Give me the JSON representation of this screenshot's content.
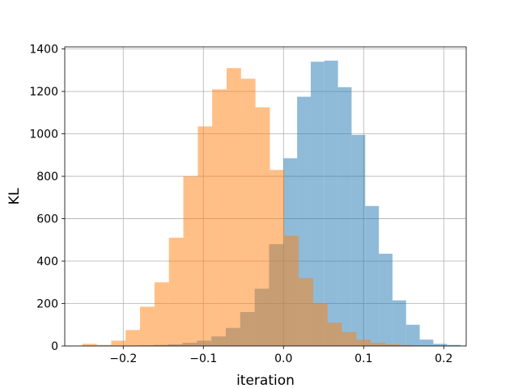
{
  "chart_data": {
    "type": "bar",
    "title": "",
    "xlabel": "iteration",
    "ylabel": "KL",
    "xlim": [
      -0.273,
      0.228
    ],
    "ylim": [
      0,
      1410
    ],
    "xticks": [
      -0.2,
      -0.1,
      0.0,
      0.1,
      0.2
    ],
    "xtick_labels": [
      "−0.2",
      "−0.1",
      "0.0",
      "0.1",
      "0.2"
    ],
    "yticks": [
      0,
      200,
      400,
      600,
      800,
      1000,
      1200,
      1400
    ],
    "ytick_labels": [
      "0",
      "200",
      "400",
      "600",
      "800",
      "1000",
      "1200",
      "1400"
    ],
    "grid": true,
    "legend": null,
    "series": [
      {
        "color": "#1f77b4",
        "alpha": 0.5,
        "bins": [
          {
            "x0": -0.198,
            "x1": -0.18,
            "value": 2
          },
          {
            "x0": -0.18,
            "x1": -0.162,
            "value": 3
          },
          {
            "x0": -0.162,
            "x1": -0.144,
            "value": 5
          },
          {
            "x0": -0.144,
            "x1": -0.126,
            "value": 8
          },
          {
            "x0": -0.126,
            "x1": -0.108,
            "value": 15
          },
          {
            "x0": -0.108,
            "x1": -0.09,
            "value": 25
          },
          {
            "x0": -0.09,
            "x1": -0.072,
            "value": 45
          },
          {
            "x0": -0.072,
            "x1": -0.054,
            "value": 85
          },
          {
            "x0": -0.054,
            "x1": -0.036,
            "value": 160
          },
          {
            "x0": -0.036,
            "x1": -0.018,
            "value": 270
          },
          {
            "x0": -0.018,
            "x1": 0.0,
            "value": 480
          },
          {
            "x0": 0.0,
            "x1": 0.017,
            "value": 885
          },
          {
            "x0": 0.017,
            "x1": 0.034,
            "value": 1175
          },
          {
            "x0": 0.034,
            "x1": 0.051,
            "value": 1340
          },
          {
            "x0": 0.051,
            "x1": 0.068,
            "value": 1345
          },
          {
            "x0": 0.068,
            "x1": 0.085,
            "value": 1220
          },
          {
            "x0": 0.085,
            "x1": 0.102,
            "value": 995
          },
          {
            "x0": 0.102,
            "x1": 0.119,
            "value": 660
          },
          {
            "x0": 0.119,
            "x1": 0.136,
            "value": 435
          },
          {
            "x0": 0.136,
            "x1": 0.153,
            "value": 215
          },
          {
            "x0": 0.153,
            "x1": 0.17,
            "value": 100
          },
          {
            "x0": 0.17,
            "x1": 0.187,
            "value": 30
          },
          {
            "x0": 0.187,
            "x1": 0.204,
            "value": 10
          },
          {
            "x0": 0.204,
            "x1": 0.221,
            "value": 5
          }
        ]
      },
      {
        "color": "#ff7f0e",
        "alpha": 0.5,
        "bins": [
          {
            "x0": -0.251,
            "x1": -0.233,
            "value": 10
          },
          {
            "x0": -0.233,
            "x1": -0.215,
            "value": 5
          },
          {
            "x0": -0.215,
            "x1": -0.197,
            "value": 25
          },
          {
            "x0": -0.197,
            "x1": -0.179,
            "value": 75
          },
          {
            "x0": -0.179,
            "x1": -0.161,
            "value": 185
          },
          {
            "x0": -0.161,
            "x1": -0.143,
            "value": 300
          },
          {
            "x0": -0.143,
            "x1": -0.125,
            "value": 510
          },
          {
            "x0": -0.125,
            "x1": -0.107,
            "value": 800
          },
          {
            "x0": -0.107,
            "x1": -0.089,
            "value": 1035
          },
          {
            "x0": -0.089,
            "x1": -0.071,
            "value": 1210
          },
          {
            "x0": -0.071,
            "x1": -0.053,
            "value": 1310
          },
          {
            "x0": -0.053,
            "x1": -0.035,
            "value": 1260
          },
          {
            "x0": -0.035,
            "x1": -0.017,
            "value": 1125
          },
          {
            "x0": -0.017,
            "x1": 0.001,
            "value": 830
          },
          {
            "x0": 0.001,
            "x1": 0.019,
            "value": 520
          },
          {
            "x0": 0.019,
            "x1": 0.037,
            "value": 320
          },
          {
            "x0": 0.037,
            "x1": 0.055,
            "value": 200
          },
          {
            "x0": 0.055,
            "x1": 0.073,
            "value": 110
          },
          {
            "x0": 0.073,
            "x1": 0.091,
            "value": 65
          },
          {
            "x0": 0.091,
            "x1": 0.109,
            "value": 30
          },
          {
            "x0": 0.109,
            "x1": 0.127,
            "value": 15
          },
          {
            "x0": 0.127,
            "x1": 0.145,
            "value": 8
          },
          {
            "x0": 0.145,
            "x1": 0.163,
            "value": 5
          },
          {
            "x0": 0.163,
            "x1": 0.181,
            "value": 2
          }
        ]
      }
    ]
  }
}
